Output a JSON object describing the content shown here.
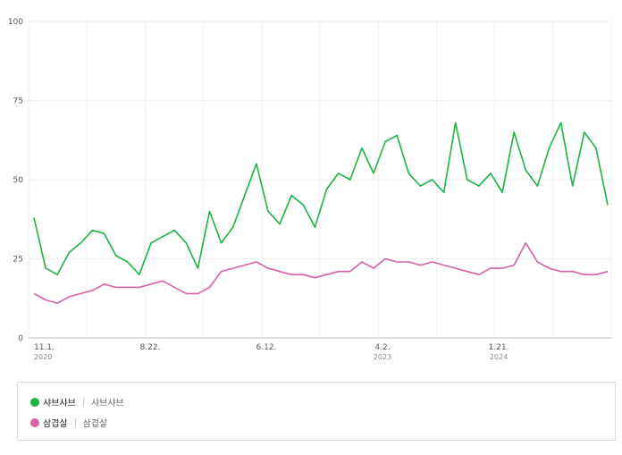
{
  "chart_data": {
    "type": "line",
    "x_ticks": [
      {
        "label": "11.1.",
        "year": "2020"
      },
      {
        "label": "8.22.",
        "year": ""
      },
      {
        "label": "6.12.",
        "year": ""
      },
      {
        "label": "4.2.",
        "year": "2023"
      },
      {
        "label": "1.21.",
        "year": "2024"
      }
    ],
    "y_ticks": [
      "0",
      "25",
      "50",
      "75",
      "100"
    ],
    "ylim": [
      0,
      100
    ],
    "grid": true,
    "legend_position": "bottom",
    "series": [
      {
        "name": "샤브샤브",
        "keyword": "샤브샤브",
        "color": "#1db341",
        "values": [
          38,
          22,
          20,
          27,
          30,
          34,
          33,
          26,
          24,
          20,
          30,
          32,
          34,
          30,
          22,
          40,
          30,
          35,
          45,
          55,
          40,
          36,
          45,
          42,
          35,
          47,
          52,
          50,
          60,
          52,
          62,
          64,
          52,
          48,
          50,
          46,
          68,
          50,
          48,
          52,
          46,
          65,
          53,
          48,
          60,
          68,
          48,
          65,
          60,
          42
        ]
      },
      {
        "name": "삼겹살",
        "keyword": "삼겹살",
        "color": "#d95fa8",
        "values": [
          14,
          12,
          11,
          13,
          14,
          15,
          17,
          16,
          16,
          16,
          17,
          18,
          16,
          14,
          14,
          16,
          21,
          22,
          23,
          24,
          22,
          21,
          20,
          20,
          19,
          20,
          21,
          21,
          24,
          22,
          25,
          24,
          24,
          23,
          24,
          23,
          22,
          21,
          20,
          22,
          22,
          23,
          30,
          24,
          22,
          21,
          21,
          20,
          20,
          21
        ]
      }
    ]
  },
  "legend": {
    "items": [
      {
        "name": "샤브샤브",
        "keyword": "샤브샤브"
      },
      {
        "name": "삼겹살",
        "keyword": "삼겹살"
      }
    ]
  }
}
